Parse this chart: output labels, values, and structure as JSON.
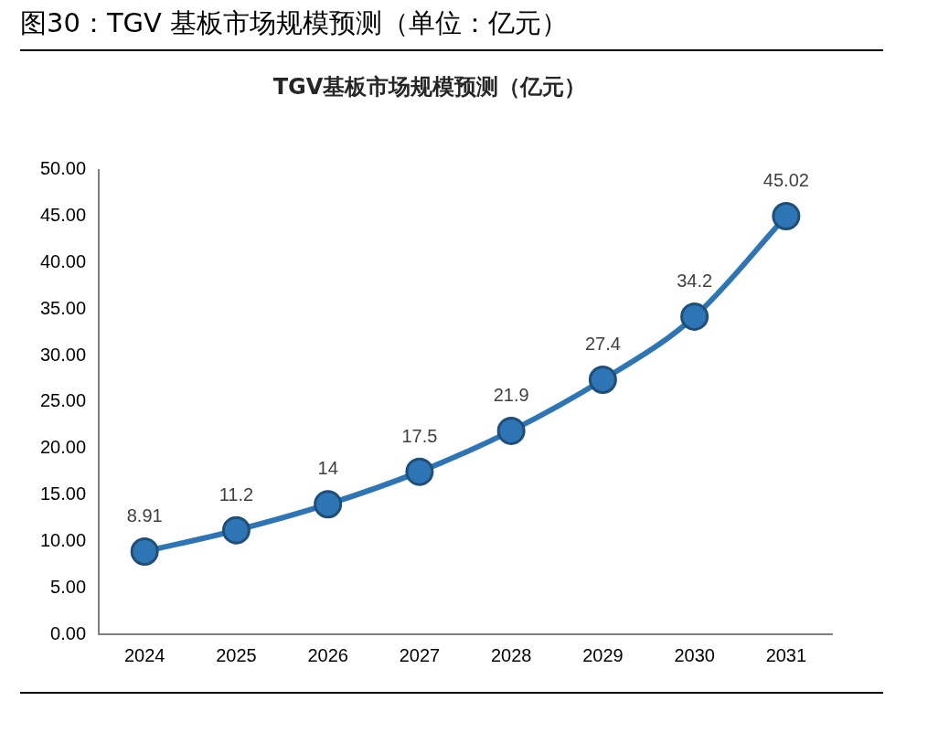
{
  "chart_data": {
    "type": "line",
    "title": "图30：TGV 基板市场规模预测（单位：亿元）",
    "subtitle": "TGV基板市场规模预测（亿元）",
    "categories": [
      "2024",
      "2025",
      "2026",
      "2027",
      "2028",
      "2029",
      "2030",
      "2031"
    ],
    "series": [
      {
        "color": "#2e75b6",
        "values": [
          8.91,
          11.2,
          14,
          17.5,
          21.9,
          27.4,
          34.2,
          45.02
        ]
      }
    ],
    "ylim": [
      0,
      50
    ],
    "yticks": [
      {
        "value": 0,
        "label": "0.00"
      },
      {
        "value": 5,
        "label": "5.00"
      },
      {
        "value": 10,
        "label": "10.00"
      },
      {
        "value": 15,
        "label": "15.00"
      },
      {
        "value": 20,
        "label": "20.00"
      },
      {
        "value": 25,
        "label": "25.00"
      },
      {
        "value": 30,
        "label": "30.00"
      },
      {
        "value": 35,
        "label": "35.00"
      },
      {
        "value": 40,
        "label": "40.00"
      },
      {
        "value": 45,
        "label": "45.00"
      },
      {
        "value": 50,
        "label": "50.00"
      }
    ],
    "data_labels": true,
    "grid": false,
    "legend": false,
    "marker": "circle",
    "line_style": "solid"
  }
}
